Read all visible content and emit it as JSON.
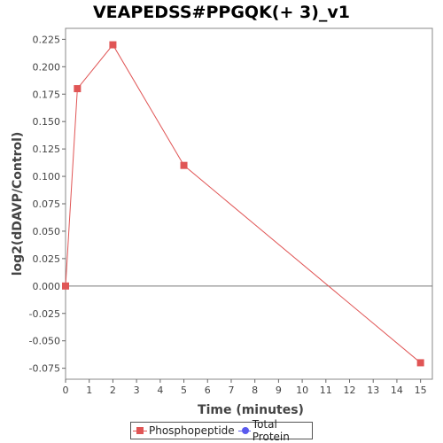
{
  "chart_data": {
    "type": "line",
    "title": "VEAPEDSS#PPGQK(+ 3)_v1",
    "xlabel": "Time (minutes)",
    "ylabel": "log2(dDAVP/Control)",
    "xlim": [
      0,
      15.5
    ],
    "ylim": [
      -0.085,
      0.235
    ],
    "x_ticks": [
      0,
      1,
      2,
      3,
      4,
      5,
      6,
      7,
      8,
      9,
      10,
      11,
      12,
      13,
      14,
      15
    ],
    "y_ticks": [
      -0.075,
      -0.05,
      -0.025,
      0.0,
      0.025,
      0.05,
      0.075,
      0.1,
      0.125,
      0.15,
      0.175,
      0.2,
      0.225
    ],
    "y_tick_labels": [
      "-0.075",
      "-0.050",
      "-0.025",
      "0.000",
      "0.025",
      "0.050",
      "0.075",
      "0.100",
      "0.125",
      "0.150",
      "0.175",
      "0.200",
      "0.225"
    ],
    "zero_line": true,
    "grid": false,
    "legend_position": "bottom-center",
    "series": [
      {
        "name": "Phosphopeptide",
        "color": "#e05555",
        "marker": "square",
        "x": [
          0,
          0.5,
          2,
          5,
          15
        ],
        "y": [
          0.0,
          0.18,
          0.22,
          0.11,
          -0.07
        ]
      },
      {
        "name": "Total Protein",
        "color": "#5a5aee",
        "marker": "circle",
        "x": [],
        "y": []
      }
    ]
  }
}
